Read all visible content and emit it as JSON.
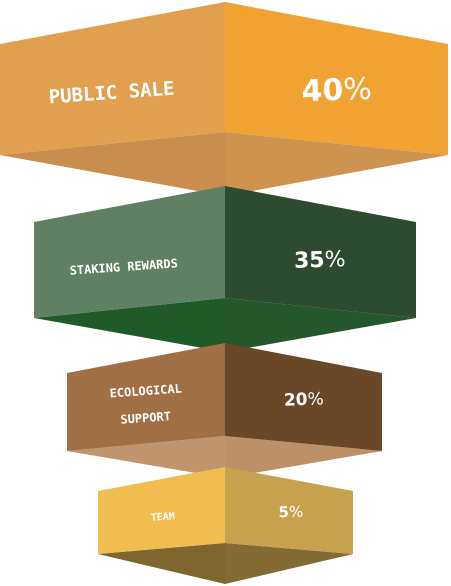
{
  "tiers": [
    {
      "label_lines": [
        "PUBLIC SALE"
      ],
      "value": "40",
      "unit": "%",
      "colors": {
        "front_left": "#E0A04F",
        "front_right": "#F0A332",
        "under_left": "#C98E4E",
        "under_right": "#CF9350"
      }
    },
    {
      "label_lines": [
        "STAKING REWARDS"
      ],
      "value": "35",
      "unit": "%",
      "colors": {
        "front_left": "#5F8064",
        "front_right": "#2C4B30",
        "under_left": "#1F5A28",
        "under_right": "#24582C"
      }
    },
    {
      "label_lines": [
        "ECOLOGICAL",
        "SUPPORT"
      ],
      "value": "20",
      "unit": "%",
      "colors": {
        "front_left": "#A06F43",
        "front_right": "#694727",
        "under_left": "#C0946D",
        "under_right": "#BE9068"
      }
    },
    {
      "label_lines": [
        "TEAM"
      ],
      "value": "5",
      "unit": "%",
      "colors": {
        "front_left": "#F1BD50",
        "front_right": "#C8A14F",
        "under_left": "#7F662F",
        "under_right": "#846A33"
      }
    }
  ]
}
